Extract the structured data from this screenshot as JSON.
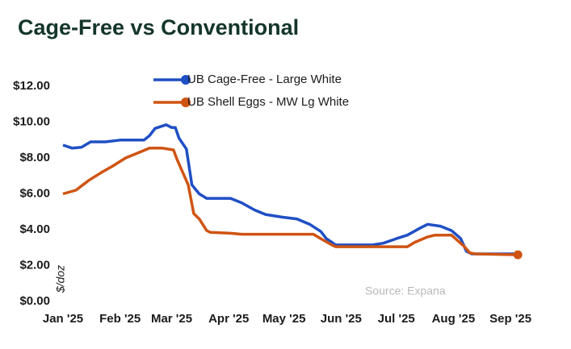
{
  "chart_data": {
    "type": "line",
    "title": "Cage-Free vs Conventional",
    "y_label": "$/doz",
    "annotation": "Source: Expana",
    "xlim": [
      0,
      252
    ],
    "xticks": [
      {
        "value": 0,
        "label": "Jan '25"
      },
      {
        "value": 31,
        "label": "Feb '25"
      },
      {
        "value": 59,
        "label": "Mar '25"
      },
      {
        "value": 90,
        "label": "Apr '25"
      },
      {
        "value": 120,
        "label": "May '25"
      },
      {
        "value": 151,
        "label": "Jun '25"
      },
      {
        "value": 181,
        "label": "Jul '25"
      },
      {
        "value": 212,
        "label": "Aug '25"
      },
      {
        "value": 243,
        "label": "Sep '25"
      }
    ],
    "ylim": [
      0,
      12
    ],
    "yticks": [
      {
        "value": 0,
        "label": "$0.00"
      },
      {
        "value": 2,
        "label": "$2.00"
      },
      {
        "value": 4,
        "label": "$4.00"
      },
      {
        "value": 6,
        "label": "$6.00"
      },
      {
        "value": 8,
        "label": "$8.00"
      },
      {
        "value": 10,
        "label": "$10.00"
      },
      {
        "value": 12,
        "label": "$12.00"
      }
    ],
    "grid": false,
    "series": [
      {
        "name": "UB Cage-Free - Large White",
        "color": "#1f4fc4",
        "x": [
          0,
          5,
          10,
          15,
          23,
          31,
          44,
          47,
          50,
          56,
          59,
          61,
          63,
          67,
          70,
          74,
          78,
          91,
          97,
          104,
          110,
          119,
          127,
          134,
          140,
          143,
          146,
          148,
          168,
          174,
          181,
          187,
          194,
          198,
          205,
          211,
          216,
          219,
          222,
          247
        ],
        "values": [
          8.72,
          8.55,
          8.6,
          8.9,
          8.9,
          9.0,
          9.0,
          9.25,
          9.65,
          9.85,
          9.7,
          9.7,
          9.1,
          8.5,
          6.5,
          6.0,
          5.75,
          5.75,
          5.5,
          5.1,
          4.85,
          4.7,
          4.6,
          4.3,
          3.9,
          3.5,
          3.3,
          3.15,
          3.15,
          3.25,
          3.5,
          3.7,
          4.1,
          4.3,
          4.2,
          3.95,
          3.5,
          2.8,
          2.65,
          2.65
        ]
      },
      {
        "name": "UB Shell Eggs - MW Lg White",
        "color": "#cf5412",
        "end_marker": true,
        "x": [
          0,
          7,
          14,
          21,
          27,
          34,
          40,
          47,
          54,
          60,
          62,
          65,
          68,
          71,
          74,
          78,
          80,
          91,
          97,
          136,
          140,
          146,
          148,
          187,
          191,
          198,
          202,
          211,
          218,
          221,
          224,
          247
        ],
        "values": [
          6.0,
          6.2,
          6.75,
          7.2,
          7.55,
          8.0,
          8.25,
          8.55,
          8.55,
          8.45,
          7.9,
          7.2,
          6.5,
          4.9,
          4.6,
          3.95,
          3.85,
          3.8,
          3.75,
          3.75,
          3.5,
          3.15,
          3.05,
          3.05,
          3.3,
          3.6,
          3.7,
          3.7,
          3.05,
          2.7,
          2.65,
          2.6
        ]
      }
    ]
  }
}
